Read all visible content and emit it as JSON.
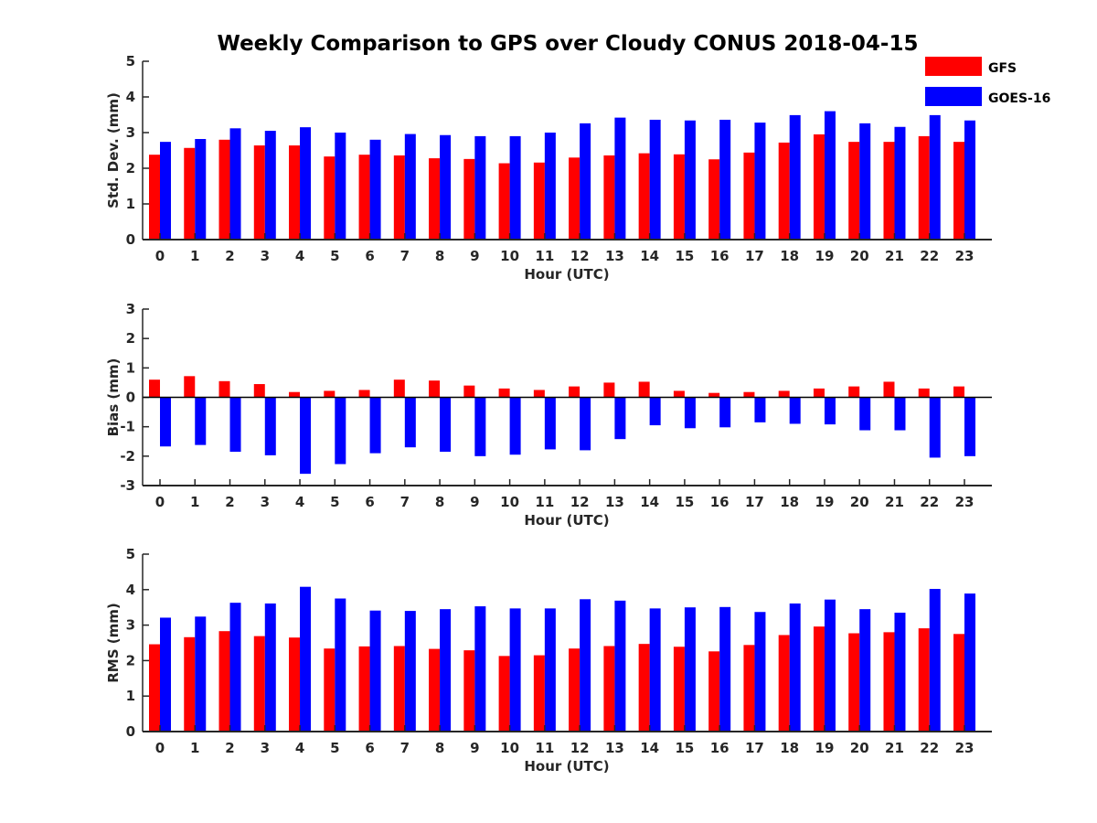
{
  "title": "Weekly Comparison to GPS over Cloudy CONUS 2018-04-15",
  "legend": [
    {
      "name": "GFS",
      "color": "#ff0000"
    },
    {
      "name": "GOES-16",
      "color": "#0000ff"
    }
  ],
  "chart_data": [
    {
      "type": "bar",
      "title": "Weekly Comparison to GPS over Cloudy CONUS 2018-04-15",
      "xlabel": "Hour (UTC)",
      "ylabel": "Std. Dev. (mm)",
      "ylim": [
        0,
        5
      ],
      "yticks": [
        "0",
        "1",
        "2",
        "3",
        "4",
        "5"
      ],
      "categories": [
        "0",
        "1",
        "2",
        "3",
        "4",
        "5",
        "6",
        "7",
        "8",
        "9",
        "10",
        "11",
        "12",
        "13",
        "14",
        "15",
        "16",
        "17",
        "18",
        "19",
        "20",
        "21",
        "22",
        "23"
      ],
      "series": [
        {
          "name": "GFS",
          "color": "#ff0000",
          "values": [
            2.38,
            2.57,
            2.8,
            2.64,
            2.64,
            2.33,
            2.38,
            2.36,
            2.28,
            2.26,
            2.14,
            2.16,
            2.3,
            2.36,
            2.42,
            2.39,
            2.25,
            2.44,
            2.72,
            2.95,
            2.74,
            2.74,
            2.9,
            2.74
          ]
        },
        {
          "name": "GOES-16",
          "color": "#0000ff",
          "values": [
            2.74,
            2.82,
            3.12,
            3.05,
            3.15,
            3.0,
            2.8,
            2.96,
            2.93,
            2.9,
            2.9,
            3.0,
            3.26,
            3.42,
            3.36,
            3.34,
            3.36,
            3.28,
            3.49,
            3.6,
            3.26,
            3.16,
            3.49,
            3.34
          ]
        }
      ]
    },
    {
      "type": "bar",
      "xlabel": "Hour (UTC)",
      "ylabel": "Bias (mm)",
      "ylim": [
        -3,
        3
      ],
      "yticks": [
        "-3",
        "-2",
        "-1",
        "0",
        "1",
        "2",
        "3"
      ],
      "categories": [
        "0",
        "1",
        "2",
        "3",
        "4",
        "5",
        "6",
        "7",
        "8",
        "9",
        "10",
        "11",
        "12",
        "13",
        "14",
        "15",
        "16",
        "17",
        "18",
        "19",
        "20",
        "21",
        "22",
        "23"
      ],
      "series": [
        {
          "name": "GFS",
          "color": "#ff0000",
          "values": [
            0.6,
            0.72,
            0.55,
            0.45,
            0.18,
            0.22,
            0.25,
            0.6,
            0.57,
            0.4,
            0.3,
            0.25,
            0.37,
            0.5,
            0.53,
            0.22,
            0.15,
            0.18,
            0.22,
            0.3,
            0.37,
            0.53,
            0.3,
            0.37
          ]
        },
        {
          "name": "GOES-16",
          "color": "#0000ff",
          "values": [
            -1.67,
            -1.62,
            -1.85,
            -1.97,
            -2.6,
            -2.27,
            -1.9,
            -1.7,
            -1.85,
            -2.0,
            -1.95,
            -1.77,
            -1.8,
            -1.42,
            -0.95,
            -1.05,
            -1.02,
            -0.85,
            -0.9,
            -0.92,
            -1.12,
            -1.12,
            -2.05,
            -2.0
          ]
        }
      ]
    },
    {
      "type": "bar",
      "xlabel": "Hour (UTC)",
      "ylabel": "RMS (mm)",
      "ylim": [
        0,
        5
      ],
      "yticks": [
        "0",
        "1",
        "2",
        "3",
        "4",
        "5"
      ],
      "categories": [
        "0",
        "1",
        "2",
        "3",
        "4",
        "5",
        "6",
        "7",
        "8",
        "9",
        "10",
        "11",
        "12",
        "13",
        "14",
        "15",
        "16",
        "17",
        "18",
        "19",
        "20",
        "21",
        "22",
        "23"
      ],
      "series": [
        {
          "name": "GFS",
          "color": "#ff0000",
          "values": [
            2.46,
            2.66,
            2.83,
            2.69,
            2.65,
            2.34,
            2.4,
            2.41,
            2.33,
            2.29,
            2.13,
            2.15,
            2.34,
            2.41,
            2.47,
            2.39,
            2.26,
            2.44,
            2.72,
            2.96,
            2.77,
            2.8,
            2.91,
            2.75
          ]
        },
        {
          "name": "GOES-16",
          "color": "#0000ff",
          "values": [
            3.21,
            3.24,
            3.63,
            3.61,
            4.08,
            3.75,
            3.41,
            3.4,
            3.45,
            3.53,
            3.47,
            3.47,
            3.73,
            3.69,
            3.47,
            3.5,
            3.51,
            3.37,
            3.61,
            3.72,
            3.45,
            3.35,
            4.02,
            3.89
          ]
        }
      ]
    }
  ]
}
